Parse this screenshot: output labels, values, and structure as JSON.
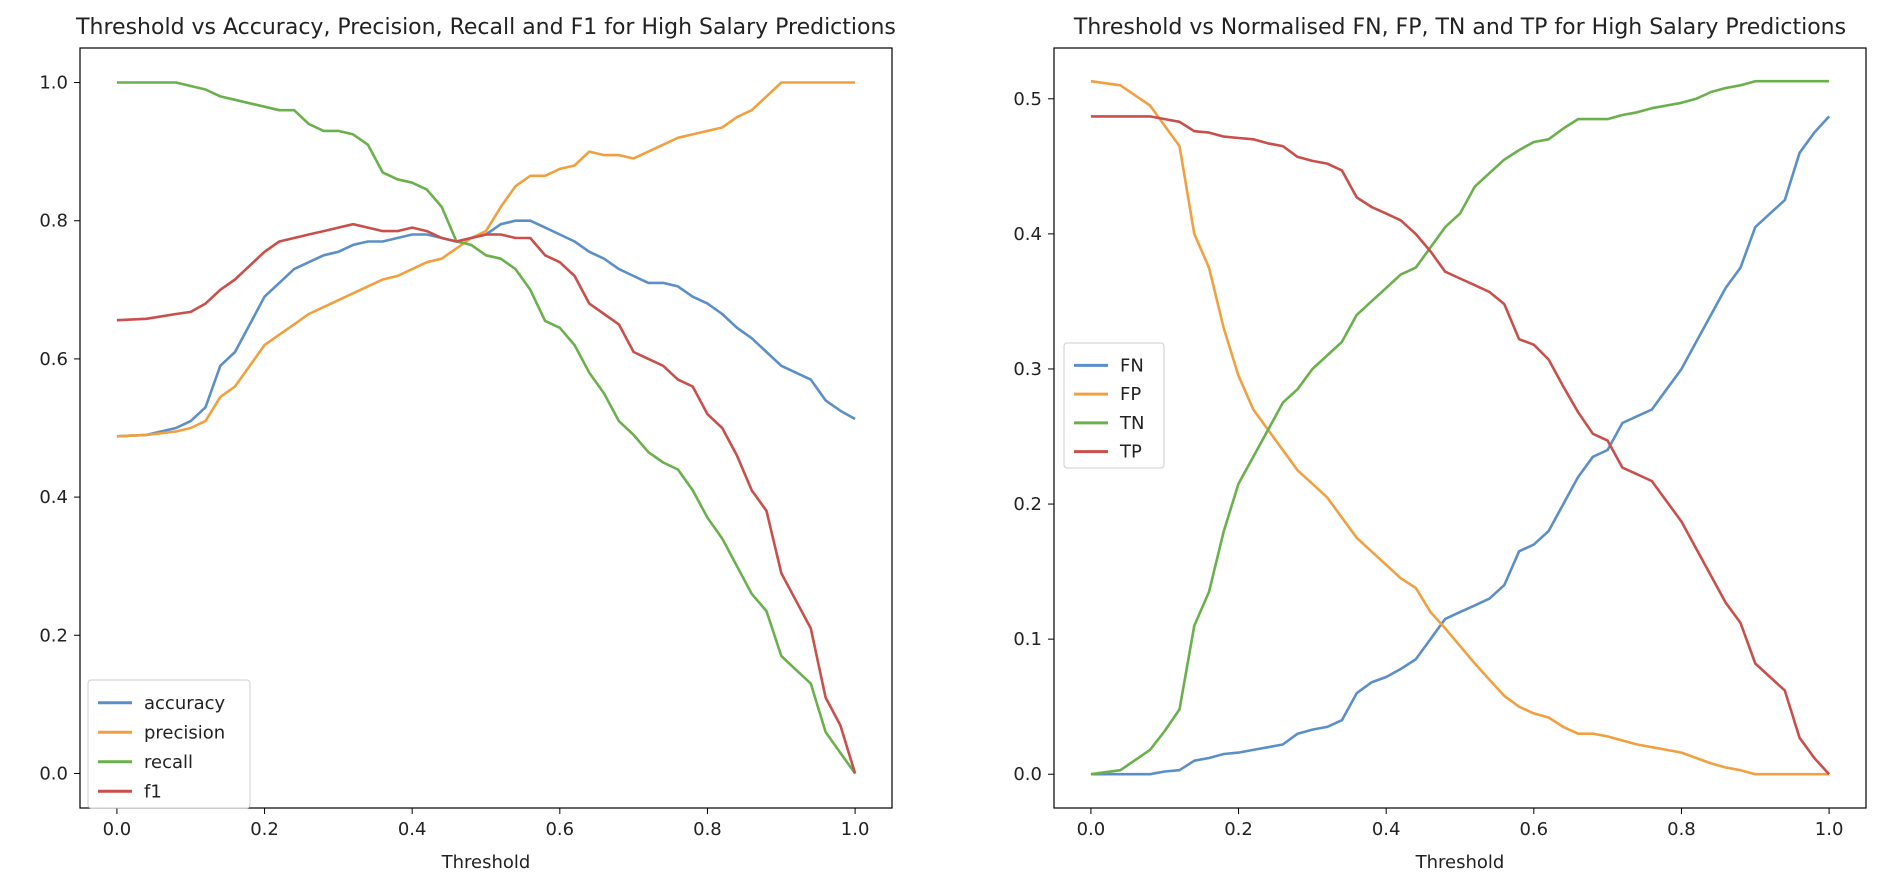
{
  "colors": {
    "accuracy": "#5b8fc7",
    "precision": "#f0a040",
    "recall": "#6ab04c",
    "f1": "#c94f4a",
    "FN": "#5b8fc7",
    "FP": "#f0a040",
    "TN": "#6ab04c",
    "TP": "#c94f4a"
  },
  "chart_data": [
    {
      "type": "line",
      "title": "Threshold vs Accuracy, Precision, Recall and F1 for High Salary Predictions",
      "xlabel": "Threshold",
      "ylabel": "",
      "xlim": [
        -0.05,
        1.05
      ],
      "ylim": [
        -0.05,
        1.05
      ],
      "xticks": [
        0.0,
        0.2,
        0.4,
        0.6,
        0.8,
        1.0
      ],
      "xtick_labels": [
        "0.0",
        "0.2",
        "0.4",
        "0.6",
        "0.8",
        "1.0"
      ],
      "yticks": [
        0.0,
        0.2,
        0.4,
        0.6,
        0.8,
        1.0
      ],
      "ytick_labels": [
        "0.0",
        "0.2",
        "0.4",
        "0.6",
        "0.8",
        "1.0"
      ],
      "grid": false,
      "legend_position": "lower-left",
      "series": [
        {
          "name": "accuracy",
          "color_key": "accuracy",
          "x": [
            0.0,
            0.04,
            0.08,
            0.1,
            0.12,
            0.14,
            0.16,
            0.18,
            0.2,
            0.22,
            0.24,
            0.26,
            0.28,
            0.3,
            0.32,
            0.34,
            0.36,
            0.38,
            0.4,
            0.42,
            0.44,
            0.46,
            0.48,
            0.5,
            0.52,
            0.54,
            0.56,
            0.58,
            0.6,
            0.62,
            0.64,
            0.66,
            0.68,
            0.7,
            0.72,
            0.74,
            0.76,
            0.78,
            0.8,
            0.82,
            0.84,
            0.86,
            0.88,
            0.9,
            0.92,
            0.94,
            0.96,
            0.98,
            1.0
          ],
          "y": [
            0.488,
            0.49,
            0.5,
            0.51,
            0.53,
            0.59,
            0.61,
            0.65,
            0.69,
            0.71,
            0.73,
            0.74,
            0.75,
            0.755,
            0.765,
            0.77,
            0.77,
            0.775,
            0.78,
            0.78,
            0.775,
            0.77,
            0.775,
            0.78,
            0.795,
            0.8,
            0.8,
            0.79,
            0.78,
            0.77,
            0.755,
            0.745,
            0.73,
            0.72,
            0.71,
            0.71,
            0.705,
            0.69,
            0.68,
            0.665,
            0.645,
            0.63,
            0.61,
            0.59,
            0.58,
            0.57,
            0.54,
            0.525,
            0.513
          ]
        },
        {
          "name": "precision",
          "color_key": "precision",
          "x": [
            0.0,
            0.04,
            0.08,
            0.1,
            0.12,
            0.14,
            0.16,
            0.18,
            0.2,
            0.22,
            0.24,
            0.26,
            0.28,
            0.3,
            0.32,
            0.34,
            0.36,
            0.38,
            0.4,
            0.42,
            0.44,
            0.46,
            0.48,
            0.5,
            0.52,
            0.54,
            0.56,
            0.58,
            0.6,
            0.62,
            0.64,
            0.66,
            0.68,
            0.7,
            0.72,
            0.74,
            0.76,
            0.78,
            0.8,
            0.82,
            0.84,
            0.86,
            0.88,
            0.9,
            0.92,
            0.94,
            0.96,
            0.98,
            1.0
          ],
          "y": [
            0.488,
            0.49,
            0.495,
            0.5,
            0.51,
            0.545,
            0.56,
            0.59,
            0.62,
            0.635,
            0.65,
            0.665,
            0.675,
            0.685,
            0.695,
            0.705,
            0.715,
            0.72,
            0.73,
            0.74,
            0.745,
            0.76,
            0.775,
            0.785,
            0.82,
            0.85,
            0.865,
            0.865,
            0.875,
            0.88,
            0.9,
            0.895,
            0.895,
            0.89,
            0.9,
            0.91,
            0.92,
            0.925,
            0.93,
            0.935,
            0.95,
            0.96,
            0.98,
            1.0,
            1.0,
            1.0,
            1.0,
            1.0,
            1.0
          ]
        },
        {
          "name": "recall",
          "color_key": "recall",
          "x": [
            0.0,
            0.04,
            0.08,
            0.1,
            0.12,
            0.14,
            0.16,
            0.18,
            0.2,
            0.22,
            0.24,
            0.26,
            0.28,
            0.3,
            0.32,
            0.34,
            0.36,
            0.38,
            0.4,
            0.42,
            0.44,
            0.46,
            0.48,
            0.5,
            0.52,
            0.54,
            0.56,
            0.58,
            0.6,
            0.62,
            0.64,
            0.66,
            0.68,
            0.7,
            0.72,
            0.74,
            0.76,
            0.78,
            0.8,
            0.82,
            0.84,
            0.86,
            0.88,
            0.9,
            0.92,
            0.94,
            0.96,
            0.98,
            1.0
          ],
          "y": [
            1.0,
            1.0,
            1.0,
            0.995,
            0.99,
            0.98,
            0.975,
            0.97,
            0.965,
            0.96,
            0.96,
            0.94,
            0.93,
            0.93,
            0.925,
            0.91,
            0.87,
            0.86,
            0.855,
            0.845,
            0.82,
            0.77,
            0.765,
            0.75,
            0.745,
            0.73,
            0.7,
            0.655,
            0.645,
            0.62,
            0.58,
            0.55,
            0.51,
            0.49,
            0.465,
            0.45,
            0.44,
            0.41,
            0.37,
            0.34,
            0.3,
            0.26,
            0.235,
            0.17,
            0.15,
            0.13,
            0.06,
            0.03,
            0.0
          ]
        },
        {
          "name": "f1",
          "color_key": "f1",
          "x": [
            0.0,
            0.04,
            0.08,
            0.1,
            0.12,
            0.14,
            0.16,
            0.18,
            0.2,
            0.22,
            0.24,
            0.26,
            0.28,
            0.3,
            0.32,
            0.34,
            0.36,
            0.38,
            0.4,
            0.42,
            0.44,
            0.46,
            0.48,
            0.5,
            0.52,
            0.54,
            0.56,
            0.58,
            0.6,
            0.62,
            0.64,
            0.66,
            0.68,
            0.7,
            0.72,
            0.74,
            0.76,
            0.78,
            0.8,
            0.82,
            0.84,
            0.86,
            0.88,
            0.9,
            0.92,
            0.94,
            0.96,
            0.98,
            1.0
          ],
          "y": [
            0.656,
            0.658,
            0.665,
            0.668,
            0.68,
            0.7,
            0.715,
            0.735,
            0.755,
            0.77,
            0.775,
            0.78,
            0.785,
            0.79,
            0.795,
            0.79,
            0.785,
            0.785,
            0.79,
            0.785,
            0.775,
            0.77,
            0.775,
            0.78,
            0.78,
            0.775,
            0.775,
            0.75,
            0.74,
            0.72,
            0.68,
            0.665,
            0.65,
            0.61,
            0.6,
            0.59,
            0.57,
            0.56,
            0.52,
            0.5,
            0.46,
            0.41,
            0.38,
            0.29,
            0.25,
            0.21,
            0.11,
            0.07,
            0.0
          ]
        }
      ]
    },
    {
      "type": "line",
      "title": "Threshold vs Normalised FN, FP, TN and TP for High Salary Predictions",
      "xlabel": "Threshold",
      "ylabel": "",
      "xlim": [
        -0.05,
        1.05
      ],
      "ylim": [
        -0.025,
        0.5376
      ],
      "xticks": [
        0.0,
        0.2,
        0.4,
        0.6,
        0.8,
        1.0
      ],
      "xtick_labels": [
        "0.0",
        "0.2",
        "0.4",
        "0.6",
        "0.8",
        "1.0"
      ],
      "yticks": [
        0.0,
        0.1,
        0.2,
        0.3,
        0.4,
        0.5
      ],
      "ytick_labels": [
        "0.0",
        "0.1",
        "0.2",
        "0.3",
        "0.4",
        "0.5"
      ],
      "grid": false,
      "legend_position": "center-left",
      "series": [
        {
          "name": "FN",
          "color_key": "FN",
          "x": [
            0.0,
            0.04,
            0.08,
            0.1,
            0.12,
            0.14,
            0.16,
            0.18,
            0.2,
            0.22,
            0.24,
            0.26,
            0.28,
            0.3,
            0.32,
            0.34,
            0.36,
            0.38,
            0.4,
            0.42,
            0.44,
            0.46,
            0.48,
            0.5,
            0.52,
            0.54,
            0.56,
            0.58,
            0.6,
            0.62,
            0.64,
            0.66,
            0.68,
            0.7,
            0.72,
            0.74,
            0.76,
            0.78,
            0.8,
            0.82,
            0.84,
            0.86,
            0.88,
            0.9,
            0.92,
            0.94,
            0.96,
            0.98,
            1.0
          ],
          "y": [
            0.0,
            0.0,
            0.0,
            0.002,
            0.003,
            0.01,
            0.012,
            0.015,
            0.016,
            0.018,
            0.02,
            0.022,
            0.03,
            0.033,
            0.035,
            0.04,
            0.06,
            0.068,
            0.072,
            0.078,
            0.085,
            0.1,
            0.115,
            0.12,
            0.125,
            0.13,
            0.14,
            0.165,
            0.17,
            0.18,
            0.2,
            0.22,
            0.235,
            0.24,
            0.26,
            0.265,
            0.27,
            0.285,
            0.3,
            0.32,
            0.34,
            0.36,
            0.375,
            0.405,
            0.415,
            0.425,
            0.46,
            0.475,
            0.487
          ]
        },
        {
          "name": "FP",
          "color_key": "FP",
          "x": [
            0.0,
            0.04,
            0.08,
            0.1,
            0.12,
            0.14,
            0.16,
            0.18,
            0.2,
            0.22,
            0.24,
            0.26,
            0.28,
            0.3,
            0.32,
            0.34,
            0.36,
            0.38,
            0.4,
            0.42,
            0.44,
            0.46,
            0.48,
            0.5,
            0.52,
            0.54,
            0.56,
            0.58,
            0.6,
            0.62,
            0.64,
            0.66,
            0.68,
            0.7,
            0.72,
            0.74,
            0.76,
            0.78,
            0.8,
            0.82,
            0.84,
            0.86,
            0.88,
            0.9,
            0.92,
            0.94,
            0.96,
            0.98,
            1.0
          ],
          "y": [
            0.513,
            0.51,
            0.495,
            0.48,
            0.465,
            0.4,
            0.375,
            0.33,
            0.295,
            0.27,
            0.255,
            0.24,
            0.225,
            0.215,
            0.205,
            0.19,
            0.175,
            0.165,
            0.155,
            0.145,
            0.138,
            0.12,
            0.108,
            0.095,
            0.082,
            0.07,
            0.058,
            0.05,
            0.045,
            0.042,
            0.035,
            0.03,
            0.03,
            0.028,
            0.025,
            0.022,
            0.02,
            0.018,
            0.016,
            0.012,
            0.008,
            0.005,
            0.003,
            0.0,
            0.0,
            0.0,
            0.0,
            0.0,
            0.0
          ]
        },
        {
          "name": "TN",
          "color_key": "TN",
          "x": [
            0.0,
            0.04,
            0.08,
            0.1,
            0.12,
            0.14,
            0.16,
            0.18,
            0.2,
            0.22,
            0.24,
            0.26,
            0.28,
            0.3,
            0.32,
            0.34,
            0.36,
            0.38,
            0.4,
            0.42,
            0.44,
            0.46,
            0.48,
            0.5,
            0.52,
            0.54,
            0.56,
            0.58,
            0.6,
            0.62,
            0.64,
            0.66,
            0.68,
            0.7,
            0.72,
            0.74,
            0.76,
            0.78,
            0.8,
            0.82,
            0.84,
            0.86,
            0.88,
            0.9,
            0.92,
            0.94,
            0.96,
            0.98,
            1.0
          ],
          "y": [
            0.0,
            0.003,
            0.018,
            0.032,
            0.048,
            0.11,
            0.135,
            0.18,
            0.215,
            0.235,
            0.255,
            0.275,
            0.285,
            0.3,
            0.31,
            0.32,
            0.34,
            0.35,
            0.36,
            0.37,
            0.375,
            0.39,
            0.405,
            0.415,
            0.435,
            0.445,
            0.455,
            0.462,
            0.468,
            0.47,
            0.478,
            0.485,
            0.485,
            0.485,
            0.488,
            0.49,
            0.493,
            0.495,
            0.497,
            0.5,
            0.505,
            0.508,
            0.51,
            0.513,
            0.513,
            0.513,
            0.513,
            0.513,
            0.513
          ]
        },
        {
          "name": "TP",
          "color_key": "TP",
          "x": [
            0.0,
            0.04,
            0.08,
            0.1,
            0.12,
            0.14,
            0.16,
            0.18,
            0.2,
            0.22,
            0.24,
            0.26,
            0.28,
            0.3,
            0.32,
            0.34,
            0.36,
            0.38,
            0.4,
            0.42,
            0.44,
            0.46,
            0.48,
            0.5,
            0.52,
            0.54,
            0.56,
            0.58,
            0.6,
            0.62,
            0.64,
            0.66,
            0.68,
            0.7,
            0.72,
            0.74,
            0.76,
            0.78,
            0.8,
            0.82,
            0.84,
            0.86,
            0.88,
            0.9,
            0.92,
            0.94,
            0.96,
            0.98,
            1.0
          ],
          "y": [
            0.487,
            0.487,
            0.487,
            0.485,
            0.483,
            0.476,
            0.475,
            0.472,
            0.471,
            0.47,
            0.467,
            0.465,
            0.457,
            0.454,
            0.452,
            0.447,
            0.427,
            0.42,
            0.415,
            0.41,
            0.4,
            0.387,
            0.372,
            0.367,
            0.362,
            0.357,
            0.348,
            0.322,
            0.318,
            0.307,
            0.287,
            0.268,
            0.252,
            0.247,
            0.227,
            0.222,
            0.217,
            0.202,
            0.187,
            0.167,
            0.147,
            0.127,
            0.112,
            0.082,
            0.072,
            0.062,
            0.027,
            0.012,
            0.0
          ]
        }
      ]
    }
  ]
}
